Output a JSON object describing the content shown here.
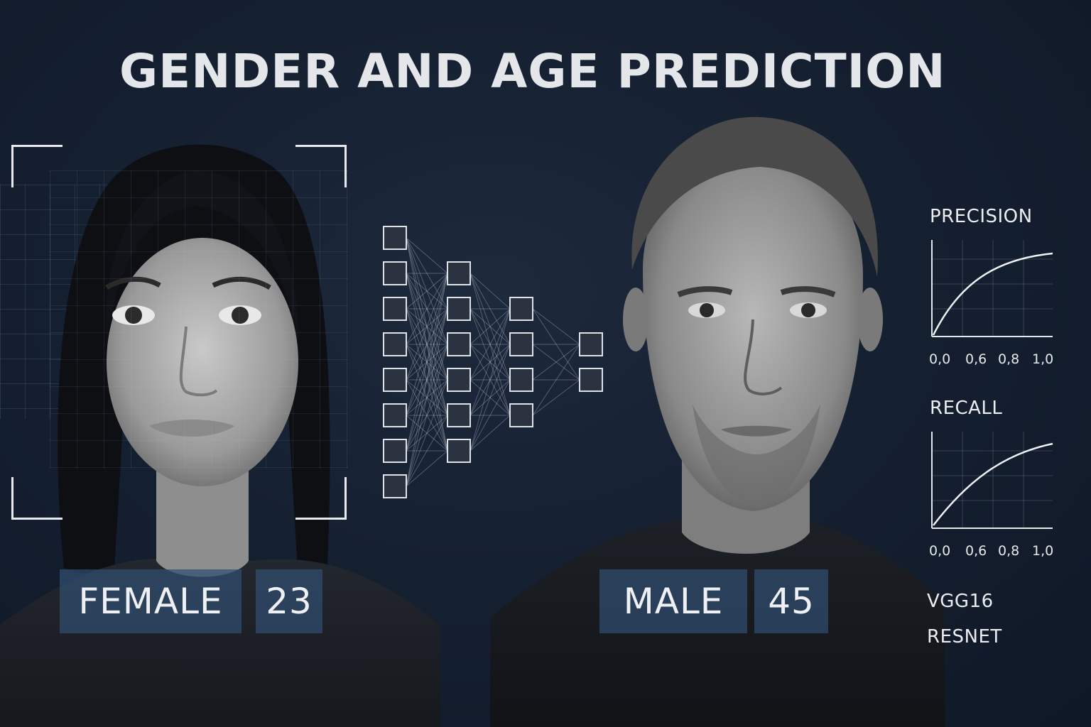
{
  "title": "GENDER AND AGE PREDICTION",
  "female": {
    "gender": "FEMALE",
    "age": "23"
  },
  "male": {
    "gender": "MALE",
    "age": "45"
  },
  "metrics": {
    "precision": {
      "title": "PRECISION",
      "ticks": [
        "0,0",
        "0,6",
        "0,8",
        "1,0"
      ]
    },
    "recall": {
      "title": "RECALL",
      "ticks": [
        "0,0",
        "0,6",
        "0,8",
        "1,0"
      ]
    }
  },
  "models": [
    "VGG16",
    "RESNET"
  ],
  "network": {
    "layers": [
      8,
      6,
      4,
      2
    ]
  },
  "colors": {
    "background": "#152031",
    "label_box": "#304e70",
    "text": "#e6e8ec"
  }
}
